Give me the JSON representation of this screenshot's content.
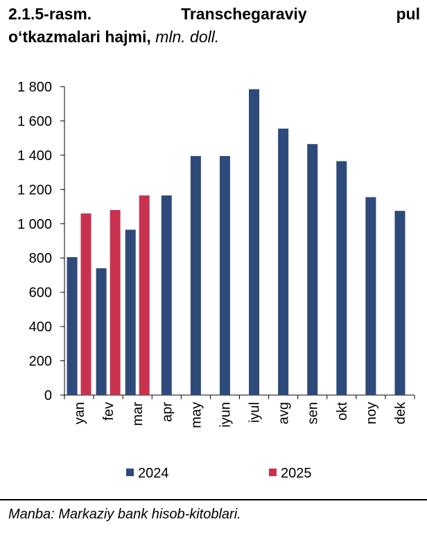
{
  "title": {
    "part1": "2.1.5-rasm.",
    "part2": "Transchegaraviy",
    "part3": "pul",
    "line2": "o‘tkazmalari hajmi,",
    "unit": "mln. doll."
  },
  "source": "Manba: Markaziy bank hisob-kitoblari.",
  "colors": {
    "2024": "#2e4a7a",
    "2025": "#c9324f"
  },
  "chart_data": {
    "type": "bar",
    "categories": [
      "yan",
      "fev",
      "mar",
      "apr",
      "may",
      "iyun",
      "iyul",
      "avg",
      "sen",
      "okt",
      "noy",
      "dek"
    ],
    "series": [
      {
        "name": "2024",
        "values": [
          805,
          740,
          965,
          1165,
          1395,
          1395,
          1785,
          1555,
          1465,
          1365,
          1155,
          1075
        ]
      },
      {
        "name": "2025",
        "values": [
          1060,
          1080,
          1165,
          null,
          null,
          null,
          null,
          null,
          null,
          null,
          null,
          null
        ]
      }
    ],
    "yticks": [
      "0",
      "200",
      "400",
      "600",
      "800",
      "1 000",
      "1 200",
      "1 400",
      "1 600",
      "1 800"
    ],
    "ylim": [
      0,
      1800
    ],
    "grid": false,
    "legend_position": "bottom"
  }
}
